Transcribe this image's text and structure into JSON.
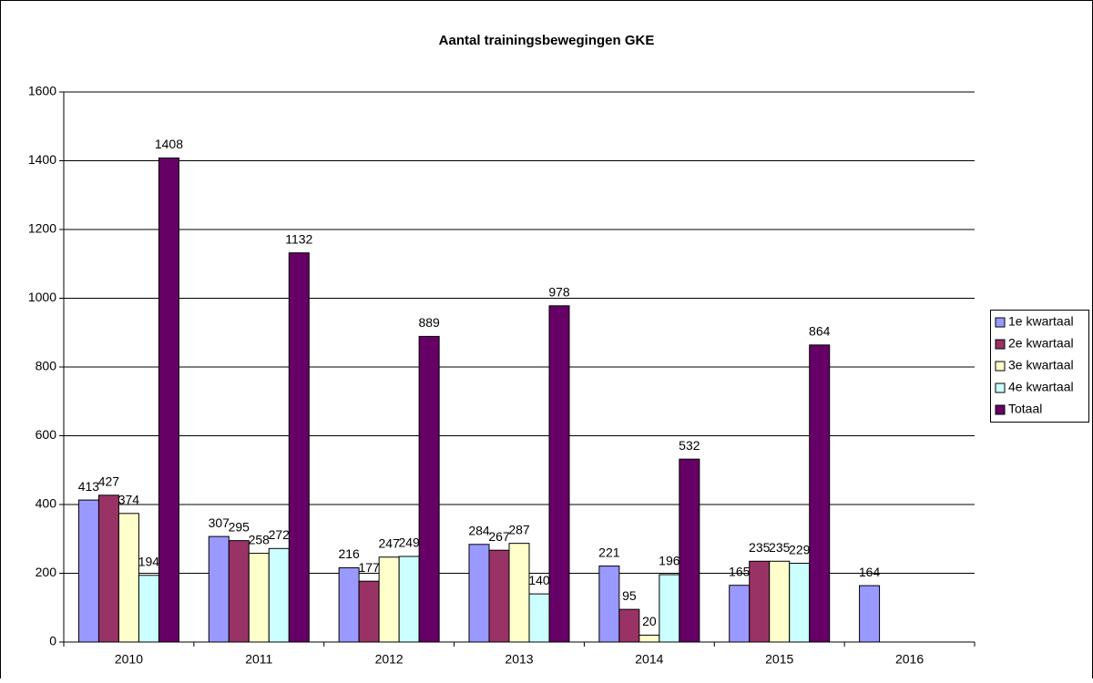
{
  "chart_data": {
    "type": "bar",
    "title": "Aantal trainingsbewegingen GKE",
    "categories": [
      "2010",
      "2011",
      "2012",
      "2013",
      "2014",
      "2015",
      "2016"
    ],
    "series": [
      {
        "name": "1e kwartaal",
        "color": "#9999ff",
        "values": [
          413,
          307,
          216,
          284,
          221,
          165,
          164
        ]
      },
      {
        "name": "2e kwartaal",
        "color": "#993366",
        "values": [
          427,
          295,
          177,
          267,
          95,
          235,
          null
        ]
      },
      {
        "name": "3e kwartaal",
        "color": "#ffffcc",
        "values": [
          374,
          258,
          247,
          287,
          20,
          235,
          null
        ]
      },
      {
        "name": "4e kwartaal",
        "color": "#ccffff",
        "values": [
          194,
          272,
          249,
          140,
          196,
          229,
          null
        ]
      },
      {
        "name": "Totaal",
        "color": "#660066",
        "values": [
          1408,
          1132,
          889,
          978,
          532,
          864,
          null
        ]
      }
    ],
    "ylim": [
      0,
      1600
    ],
    "yticks": [
      0,
      200,
      400,
      600,
      800,
      1000,
      1200,
      1400,
      1600
    ],
    "grid": true,
    "legend": "right"
  }
}
